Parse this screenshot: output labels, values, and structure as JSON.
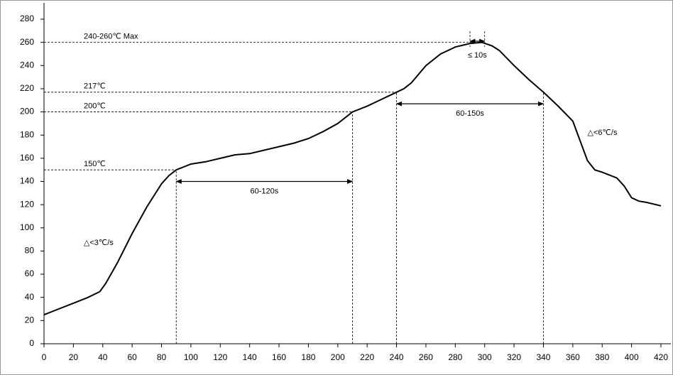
{
  "chart_data": {
    "type": "line",
    "x": [
      0,
      10,
      20,
      30,
      38,
      42,
      50,
      60,
      70,
      80,
      85,
      90,
      100,
      110,
      120,
      130,
      140,
      150,
      160,
      170,
      180,
      190,
      200,
      210,
      220,
      230,
      240,
      245,
      250,
      260,
      270,
      280,
      290,
      298,
      305,
      310,
      320,
      330,
      340,
      350,
      360,
      365,
      370,
      375,
      380,
      390,
      395,
      400,
      405,
      410,
      420
    ],
    "values": [
      25,
      30,
      35,
      40,
      45,
      52,
      70,
      95,
      118,
      138,
      145,
      150,
      155,
      157,
      160,
      163,
      164,
      167,
      170,
      173,
      177,
      183,
      190,
      200,
      205,
      211,
      217,
      220,
      225,
      240,
      250,
      256,
      259,
      260,
      257,
      253,
      240,
      228,
      217,
      205,
      192,
      175,
      158,
      150,
      148,
      143,
      136,
      126,
      123,
      122,
      119
    ],
    "color": "#000000",
    "xlim": [
      0,
      420
    ],
    "xticks": [
      0,
      20,
      40,
      60,
      80,
      100,
      120,
      140,
      160,
      180,
      200,
      220,
      240,
      260,
      280,
      300,
      320,
      340,
      360,
      380,
      400,
      420
    ],
    "ylim": [
      0,
      280
    ],
    "yticks": [
      0,
      20,
      40,
      60,
      80,
      100,
      120,
      140,
      160,
      180,
      200,
      220,
      240,
      260,
      280
    ],
    "hlines": [
      {
        "value": 260,
        "label": "240-260℃ Max"
      },
      {
        "value": 217,
        "label": "217℃"
      },
      {
        "value": 200,
        "label": "200℃"
      },
      {
        "value": 150,
        "label": "150℃"
      }
    ],
    "vlines": [
      90,
      210,
      240,
      340
    ],
    "spans": [
      {
        "from": 90,
        "to": 210,
        "y": 140,
        "label": "60-120s"
      },
      {
        "from": 240,
        "to": 340,
        "y": 207,
        "label": "60-150s"
      },
      {
        "from": 290,
        "to": 300,
        "y": 261,
        "label": "≤ 10s",
        "bounds": true
      }
    ],
    "annotations": [
      {
        "text": "△<3℃/s",
        "x": 27,
        "y": 87
      },
      {
        "text": "△<6℃/s",
        "x": 370,
        "y": 182
      }
    ]
  }
}
